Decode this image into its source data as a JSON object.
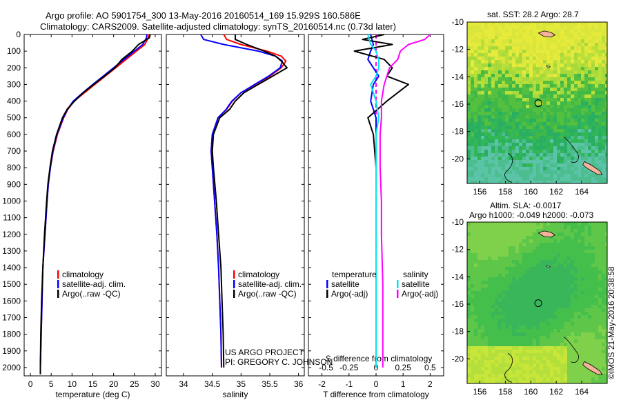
{
  "header": {
    "line1": "Argo profile: AO 5901754_300 13-May-2016 20160514_169 15.929S 160.586E",
    "line2": "Climatology: CARS2009. Satellite-adjusted climatology: synTS_20160514.nc (0.73d later)"
  },
  "colors": {
    "climatology": "#ff0000",
    "satellite": "#0000ff",
    "argo": "#000000",
    "sal_satellite": "#00e5ee",
    "sal_argo": "#ff00ff"
  },
  "legend_profiles": [
    "climatology",
    "satellite-adj. clim.",
    "Argo(..raw -QC)"
  ],
  "legend_diff": {
    "temp_title": "temperature",
    "sal_title": "salinity",
    "satellite": "satellite",
    "argo": "Argo(-adj)"
  },
  "credits": {
    "line1": "US ARGO PROJECT",
    "line2": "PI: GREGORY C. JOHNSON"
  },
  "maps": {
    "sst_title": "sat. SST: 28.2  Argo: 28.7",
    "sla_title1": "Altim. SLA: -0.0017",
    "sla_title2": "Argo h1000: -0.049 h2000: -0.073",
    "lon_ticks": [
      "156",
      "158",
      "160",
      "162",
      "164"
    ],
    "lat_ticks": [
      "-10",
      "-12",
      "-14",
      "-16",
      "-18",
      "-20"
    ]
  },
  "stamp": "©IMOS 21-May-2016 20:38:58",
  "chart_data": [
    {
      "type": "line",
      "xlabel": "temperature (deg C)",
      "ylabel": "",
      "xlim": [
        -1.5,
        31.5
      ],
      "ylim": [
        0,
        2050
      ],
      "x_ticks": [
        0,
        5,
        10,
        15,
        20,
        25,
        30
      ],
      "y_ticks": [
        0,
        100,
        200,
        300,
        400,
        500,
        600,
        700,
        800,
        900,
        1000,
        1100,
        1200,
        1300,
        1400,
        1500,
        1600,
        1700,
        1800,
        1900,
        2000
      ],
      "depth": [
        0,
        20,
        60,
        100,
        150,
        200,
        250,
        300,
        350,
        400,
        450,
        500,
        600,
        700,
        800,
        900,
        1000,
        1200,
        1400,
        1600,
        1800,
        2000,
        2040
      ],
      "series": [
        {
          "name": "climatology",
          "values": [
            28.5,
            28.3,
            27.5,
            25.5,
            23.0,
            20.5,
            18.0,
            15.5,
            13.0,
            10.5,
            9.0,
            8.0,
            6.5,
            5.5,
            4.8,
            4.3,
            4.0,
            3.5,
            3.0,
            2.8,
            2.6,
            2.4,
            2.4
          ]
        },
        {
          "name": "satellite-adj. clim.",
          "values": [
            28.0,
            27.9,
            27.0,
            25.0,
            22.5,
            20.0,
            17.5,
            15.0,
            12.6,
            10.3,
            8.9,
            7.9,
            6.4,
            5.4,
            4.8,
            4.3,
            4.0,
            3.5,
            3.0,
            2.8,
            2.6,
            2.4,
            2.4
          ]
        },
        {
          "name": "Argo(..raw -QC)",
          "values": [
            28.8,
            28.6,
            26.0,
            24.5,
            22.0,
            20.3,
            17.8,
            15.2,
            12.7,
            10.6,
            8.8,
            7.7,
            6.3,
            5.3,
            4.7,
            4.2,
            3.9,
            3.4,
            3.0,
            2.7,
            2.5,
            2.4,
            2.4
          ]
        }
      ]
    },
    {
      "type": "line",
      "xlabel": "salinity",
      "ylabel": "",
      "xlim": [
        33.7,
        36.1
      ],
      "ylim": [
        0,
        2050
      ],
      "x_ticks": [
        34,
        34.5,
        35,
        35.5,
        36
      ],
      "depth": [
        0,
        30,
        60,
        100,
        130,
        160,
        200,
        250,
        300,
        350,
        400,
        450,
        500,
        600,
        700,
        800,
        1000,
        1200,
        1400,
        1600,
        1800,
        2000
      ],
      "series": [
        {
          "name": "climatology",
          "values": [
            34.7,
            34.75,
            35.0,
            35.45,
            35.7,
            35.78,
            35.7,
            35.5,
            35.25,
            35.0,
            34.85,
            34.75,
            34.6,
            34.5,
            34.48,
            34.5,
            34.54,
            34.58,
            34.61,
            34.63,
            34.65,
            34.66
          ]
        },
        {
          "name": "satellite-adj. clim.",
          "values": [
            34.3,
            34.35,
            34.7,
            35.3,
            35.6,
            35.72,
            35.68,
            35.48,
            35.24,
            35.0,
            34.84,
            34.74,
            34.6,
            34.5,
            34.48,
            34.5,
            34.54,
            34.58,
            34.61,
            34.63,
            34.65,
            34.66
          ]
        },
        {
          "name": "Argo(..raw -QC)",
          "values": [
            34.9,
            34.9,
            35.1,
            35.4,
            35.6,
            35.7,
            35.8,
            35.55,
            35.3,
            35.05,
            34.9,
            34.8,
            34.63,
            34.52,
            34.5,
            34.52,
            34.57,
            34.61,
            34.65,
            34.67,
            34.69,
            34.7
          ]
        }
      ]
    },
    {
      "type": "line",
      "xlabel": "T difference from climatology",
      "x2label": "S difference from climatology",
      "ylabel": "",
      "xlim": [
        -2.5,
        2.5
      ],
      "ylim": [
        0,
        2050
      ],
      "x_ticks": [
        -2,
        -1,
        0,
        1,
        2
      ],
      "x2_tick_labels": [
        "-0.5",
        "-0.25",
        "0",
        "0.25",
        "0.5"
      ],
      "depth": [
        0,
        30,
        60,
        100,
        150,
        200,
        250,
        300,
        400,
        500,
        600,
        800,
        1000,
        1200,
        1500,
        1800,
        2000
      ],
      "series": [
        {
          "name": "temperature satellite",
          "values": [
            -0.2,
            -0.15,
            -0.1,
            -0.2,
            -0.3,
            -0.1,
            0.1,
            -0.1,
            -0.2,
            0.0,
            0.0,
            0.0,
            0.0,
            0.0,
            0.0,
            0.0,
            0.0
          ]
        },
        {
          "name": "temperature Argo(-adj)",
          "values": [
            0.3,
            -0.5,
            0.6,
            -0.8,
            0.3,
            0.6,
            0.4,
            1.2,
            0.4,
            -0.3,
            -0.1,
            0.0,
            0.0,
            0.0,
            0.0,
            0.0,
            0.0
          ]
        },
        {
          "name": "salinity satellite",
          "values": [
            -0.3,
            -0.25,
            -0.2,
            0.0,
            0.1,
            0.1,
            0.0,
            -0.2,
            0.0,
            0.1,
            0.0,
            0.0,
            0.0,
            0.0,
            0.0,
            0.0,
            0.0
          ]
        },
        {
          "name": "salinity Argo(-adj)",
          "values": [
            2.0,
            1.8,
            1.2,
            0.9,
            0.8,
            0.5,
            0.4,
            0.3,
            0.2,
            0.2,
            0.15,
            0.15,
            0.2,
            0.2,
            0.25,
            0.25,
            0.25
          ]
        }
      ]
    }
  ]
}
